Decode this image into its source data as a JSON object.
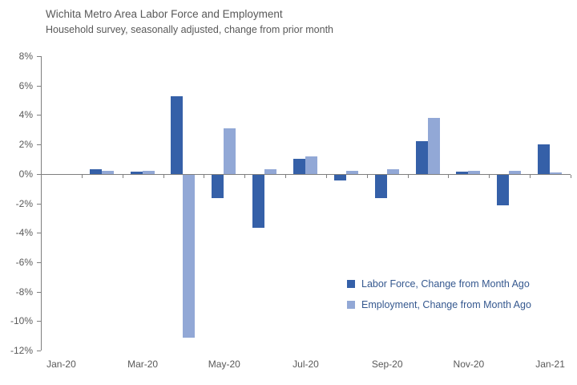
{
  "chart_data": {
    "type": "bar",
    "title": "Wichita Metro Area Labor Force and Employment",
    "subtitle": "Household survey, seasonally adjusted, change from prior month",
    "categories": [
      "Jan-20",
      "Feb-20",
      "Mar-20",
      "Apr-20",
      "May-20",
      "Jun-20",
      "Jul-20",
      "Aug-20",
      "Sep-20",
      "Oct-20",
      "Nov-20",
      "Dec-20",
      "Jan-21"
    ],
    "series": [
      {
        "name": "Labor Force, Change from Month Ago",
        "color": "#3560a8",
        "values": [
          0,
          0.3,
          0.15,
          5.3,
          -1.6,
          -3.6,
          1.0,
          -0.4,
          -1.6,
          2.2,
          0.15,
          -2.1,
          2.0
        ]
      },
      {
        "name": "Employment, Change from Month Ago",
        "color": "#92a8d6",
        "values": [
          0,
          0.2,
          0.2,
          -11.1,
          3.1,
          0.3,
          1.2,
          0.2,
          0.3,
          3.8,
          0.2,
          0.2,
          0.1
        ]
      }
    ],
    "unit": "percent",
    "ylim": [
      -12,
      8
    ],
    "y_tick_step": 2,
    "y_tick_labels": [
      "8%",
      "6%",
      "4%",
      "2%",
      "0%",
      "-2%",
      "-4%",
      "-6%",
      "-8%",
      "-10%",
      "-12%"
    ],
    "x_tick_labels": [
      "Jan-20",
      "Mar-20",
      "May-20",
      "Jul-20",
      "Sep-20",
      "Nov-20",
      "Jan-21"
    ],
    "x_tick_label_indices": [
      0,
      2,
      4,
      6,
      8,
      10,
      12
    ],
    "grid": false,
    "legend_position": "inside-right",
    "colors": {
      "labor_force_bar": "#3560a8",
      "employment_bar": "#92a8d6",
      "axis": "#7f7f7f",
      "tick_text": "#595959",
      "title_text": "#595959",
      "legend_text": "#35588f",
      "background": "#ffffff"
    }
  }
}
